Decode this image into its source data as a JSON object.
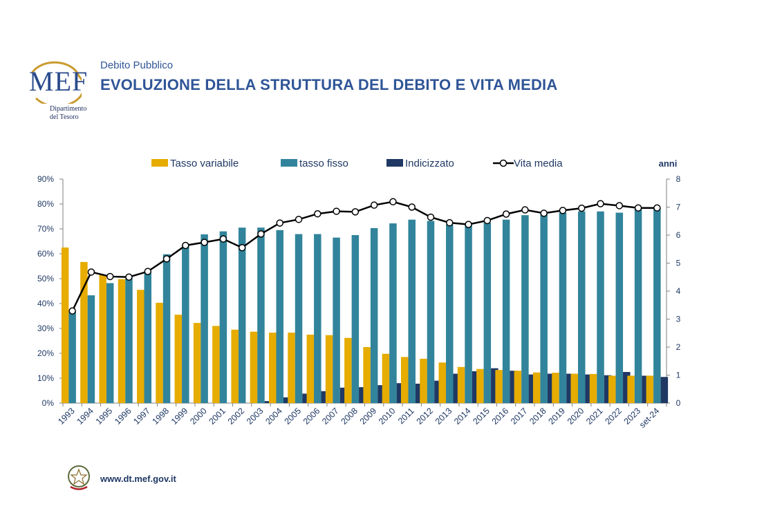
{
  "brand": {
    "logo_text": "MEF",
    "dept_line1": "Dipartimento",
    "dept_line2": "del Tesoro"
  },
  "header": {
    "kicker": "Debito Pubblico",
    "title": "EVOLUZIONE DELLA STRUTTURA DEL DEBITO E VITA MEDIA"
  },
  "footer": {
    "url": "www.dt.mef.gov.it"
  },
  "colors": {
    "variabile": "#e6ac00",
    "fisso": "#31849b",
    "indicizzato": "#1f3864",
    "line": "#000000",
    "axis": "#7f7f7f",
    "tick_text": "#1f3864"
  },
  "chart_data": {
    "type": "bar",
    "title": "EVOLUZIONE DELLA STRUTTURA DEL DEBITO E VITA MEDIA",
    "categories": [
      "1993",
      "1994",
      "1995",
      "1996",
      "1997",
      "1998",
      "1999",
      "2000",
      "2001",
      "2002",
      "2003",
      "2004",
      "2005",
      "2006",
      "2007",
      "2008",
      "2009",
      "2010",
      "2011",
      "2012",
      "2013",
      "2014",
      "2015",
      "2016",
      "2017",
      "2018",
      "2019",
      "2020",
      "2021",
      "2022",
      "2023",
      "set-24"
    ],
    "series": [
      {
        "name": "Tasso variabile",
        "type": "bar",
        "axis": "left",
        "values": [
          62.5,
          56.7,
          51.5,
          49.8,
          45.5,
          40.3,
          35.5,
          32.2,
          31.0,
          29.5,
          28.7,
          28.3,
          28.3,
          27.5,
          27.3,
          26.2,
          22.5,
          19.8,
          18.5,
          17.8,
          16.3,
          14.5,
          13.7,
          13.3,
          13.0,
          12.3,
          12.2,
          11.8,
          11.7,
          11.0,
          11.0,
          11.0
        ]
      },
      {
        "name": "tasso fisso",
        "type": "bar",
        "axis": "left",
        "values": [
          36.8,
          43.3,
          48.2,
          50.2,
          52.5,
          59.8,
          63.5,
          67.8,
          69.0,
          70.5,
          70.5,
          69.5,
          67.9,
          67.9,
          66.5,
          67.5,
          70.3,
          72.2,
          73.7,
          73.2,
          71.8,
          71.5,
          72.5,
          73.7,
          75.5,
          76.0,
          76.5,
          77.0,
          77.0,
          76.5,
          78.0,
          78.3
        ]
      },
      {
        "name": "Indicizzato",
        "type": "bar",
        "axis": "left",
        "values": [
          0,
          0,
          0,
          0,
          0,
          0,
          0,
          0,
          0,
          0,
          0.8,
          2.3,
          3.8,
          4.8,
          6.2,
          6.4,
          7.2,
          8.0,
          7.8,
          9.0,
          11.8,
          12.8,
          14.0,
          13.0,
          11.5,
          11.8,
          11.8,
          11.5,
          11.2,
          12.5,
          11.0,
          10.5
        ]
      },
      {
        "name": "Vita media",
        "type": "line",
        "axis": "right",
        "values": [
          3.29,
          4.68,
          4.52,
          4.5,
          4.7,
          5.15,
          5.63,
          5.74,
          5.86,
          5.55,
          6.04,
          6.43,
          6.56,
          6.76,
          6.85,
          6.83,
          7.07,
          7.19,
          7.0,
          6.64,
          6.44,
          6.38,
          6.52,
          6.75,
          6.9,
          6.78,
          6.88,
          6.96,
          7.12,
          7.05,
          6.97,
          6.97
        ]
      }
    ],
    "left_axis": {
      "ylim": [
        0,
        90
      ],
      "step": 10,
      "tick_labels": [
        "0%",
        "10%",
        "20%",
        "30%",
        "40%",
        "50%",
        "60%",
        "70%",
        "80%",
        "90%"
      ]
    },
    "right_axis": {
      "label": "anni",
      "ylim": [
        0,
        8
      ],
      "step": 1,
      "tick_labels": [
        "0",
        "1",
        "2",
        "3",
        "4",
        "5",
        "6",
        "7",
        "8"
      ]
    },
    "legend": {
      "placement": "top",
      "items": [
        "Tasso variabile",
        "tasso fisso",
        "Indicizzato",
        "Vita media"
      ]
    },
    "grid": false,
    "xlabel": "",
    "ylabel": ""
  }
}
